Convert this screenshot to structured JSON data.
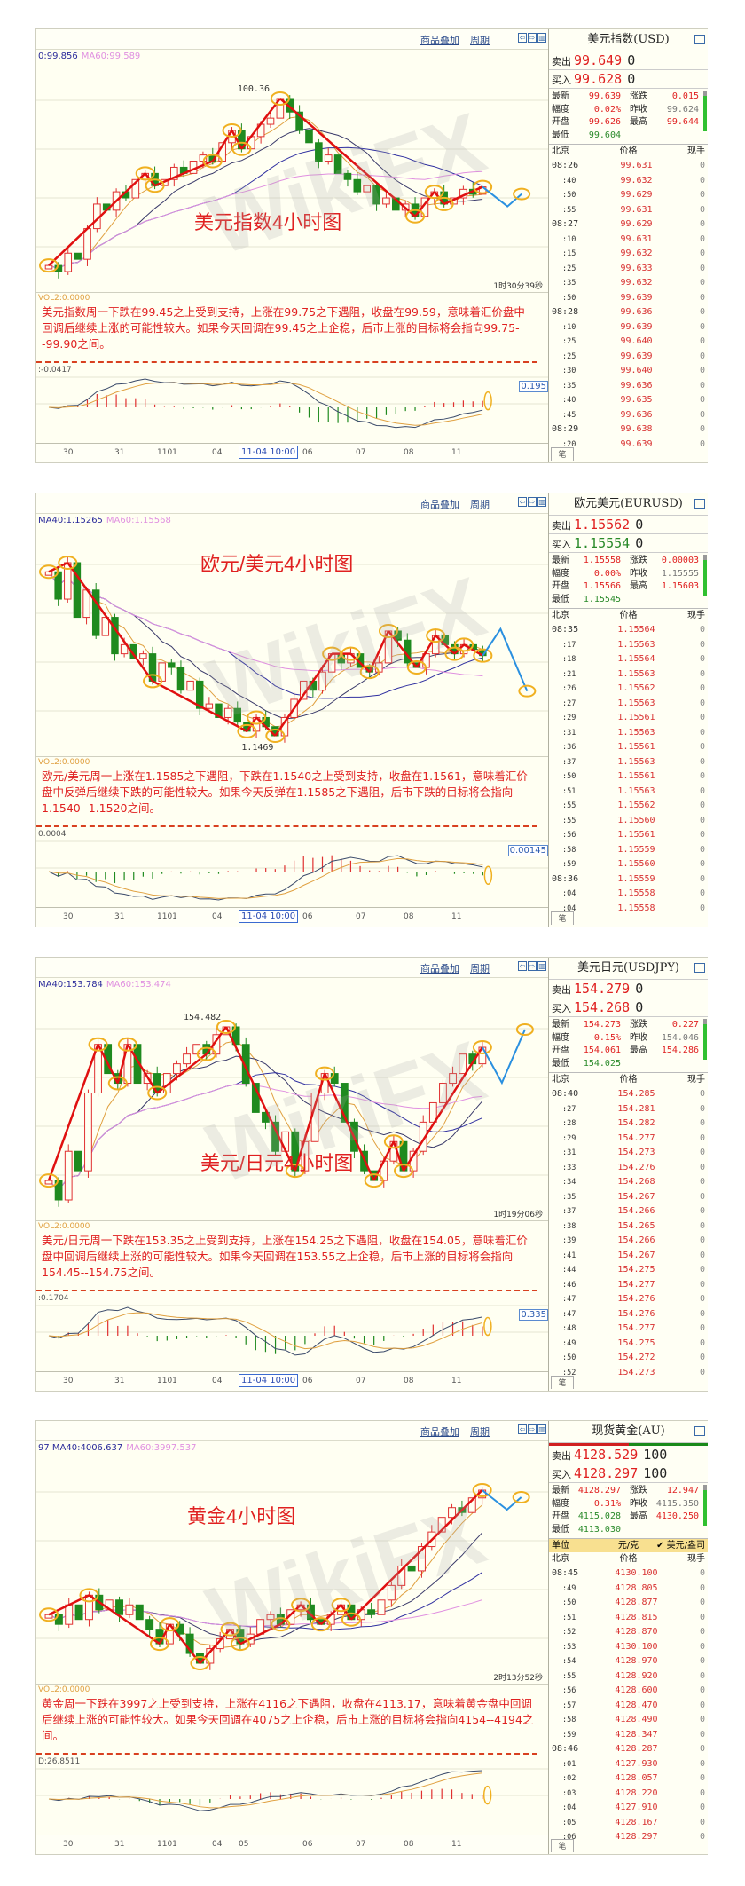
{
  "watermark": "WikiFX",
  "toolbar": {
    "overlay": "商品叠加",
    "period": "周期",
    "icons": [
      "prev-icon",
      "next-icon",
      "layout-icon"
    ]
  },
  "colors": {
    "up": "#e03030",
    "down": "#1f8a1f",
    "ma_fast": "#e0a040",
    "ma_mid": "#3a3a6a",
    "ma_slow": "#3030a0",
    "ma_long": "#e090e0",
    "annotation_ring": "#f0b020",
    "annotation_arrow": "#e01010",
    "forecast_arrow": "#2a90e0"
  },
  "panels": [
    {
      "chart_title": "美元指数4小时图",
      "ma_header": {
        "ma40": "0:99.856",
        "ma60": "MA60:99.589"
      },
      "peak_label": "100.36",
      "timer": "1时30分39秒",
      "vol_label": "VOL2:0.0000",
      "analysis": "美元指数周一下跌在99.45之上受到支持，上涨在99.75之下遇阻，收盘在99.59，意味着汇价盘中回调后继续上涨的可能性较大。如果今天回调在99.45之上企稳，后市上涨的目标将会指向99.75--99.90之间。",
      "macd_label": ":-0.0417",
      "macd_box": "0.195",
      "x_ticks": [
        "30",
        "31",
        "1101",
        "04",
        "11-04 10:00",
        "06",
        "07",
        "08",
        "11"
      ],
      "forecast": "down",
      "closes": [
        99.0,
        98.95,
        99.1,
        99.05,
        99.3,
        99.5,
        99.45,
        99.6,
        99.55,
        99.7,
        99.75,
        99.65,
        99.7,
        99.8,
        99.75,
        99.85,
        99.9,
        99.85,
        100.0,
        100.1,
        99.95,
        100.05,
        100.15,
        100.2,
        100.36,
        100.25,
        100.1,
        100.0,
        99.85,
        99.9,
        99.75,
        99.7,
        99.6,
        99.65,
        99.5,
        99.55,
        99.45,
        99.5,
        99.4,
        99.55,
        99.6,
        99.5,
        99.55,
        99.62,
        99.58,
        99.64
      ],
      "quote": {
        "title": "美元指数(USD)",
        "sell_label": "卖出",
        "sell": "99.649",
        "sell_vol": "0",
        "buy_label": "买入",
        "buy": "99.628",
        "buy_vol": "0",
        "buy_color": "red",
        "stats": [
          [
            "最新",
            "99.639",
            "涨跌",
            "0.015"
          ],
          [
            "幅度",
            "0.02%",
            "昨收",
            "99.624"
          ],
          [
            "开盘",
            "99.626",
            "最高",
            "99.644"
          ],
          [
            "最低",
            "99.604",
            "",
            ""
          ]
        ],
        "columns": [
          "北京",
          "价格",
          "现手"
        ],
        "ticks": [
          [
            "08:26",
            "99.631",
            "0"
          ],
          [
            ":40",
            "99.632",
            "0"
          ],
          [
            ":50",
            "99.629",
            "0"
          ],
          [
            ":55",
            "99.631",
            "0"
          ],
          [
            "08:27",
            "99.629",
            "0"
          ],
          [
            ":10",
            "99.631",
            "0"
          ],
          [
            ":15",
            "99.632",
            "0"
          ],
          [
            ":25",
            "99.633",
            "0"
          ],
          [
            ":35",
            "99.632",
            "0"
          ],
          [
            ":50",
            "99.639",
            "0"
          ],
          [
            "08:28",
            "99.636",
            "0"
          ],
          [
            ":10",
            "99.639",
            "0"
          ],
          [
            ":25",
            "99.640",
            "0"
          ],
          [
            ":25",
            "99.639",
            "0"
          ],
          [
            ":30",
            "99.640",
            "0"
          ],
          [
            ":35",
            "99.636",
            "0"
          ],
          [
            ":40",
            "99.635",
            "0"
          ],
          [
            ":45",
            "99.636",
            "0"
          ],
          [
            "08:29",
            "99.638",
            "0"
          ],
          [
            ":20",
            "99.639",
            "0"
          ]
        ],
        "tab": "笔"
      }
    },
    {
      "chart_title": "欧元/美元4小时图",
      "ma_header": {
        "ma40": "MA40:1.15265",
        "ma60": "MA60:1.15568"
      },
      "low_label": "1.1469",
      "timer": "",
      "vol_label": "VOL2:0.0000",
      "analysis": "欧元/美元周一上涨在1.1585之下遇阻，下跌在1.1540之上受到支持，收盘在1.1561，意味着汇价盘中反弹后继续下跌的可能性较大。如果今天反弹在1.1585之下遇阻，后市下跌的目标将会指向1.1540--1.1520之间。",
      "macd_label": "0.0004",
      "macd_box": "0.00145",
      "x_ticks": [
        "30",
        "31",
        "1101",
        "04",
        "11-04 10:00",
        "06",
        "07",
        "08",
        "11"
      ],
      "forecast": "up-down",
      "closes": [
        1.165,
        1.162,
        1.166,
        1.16,
        1.163,
        1.158,
        1.16,
        1.156,
        1.157,
        1.1555,
        1.156,
        1.153,
        1.155,
        1.1545,
        1.152,
        1.153,
        1.15,
        1.1505,
        1.149,
        1.15,
        1.1485,
        1.1475,
        1.149,
        1.148,
        1.147,
        1.149,
        1.151,
        1.153,
        1.152,
        1.154,
        1.156,
        1.155,
        1.156,
        1.1545,
        1.154,
        1.155,
        1.1585,
        1.1575,
        1.155,
        1.1545,
        1.156,
        1.158,
        1.157,
        1.156,
        1.157,
        1.1565,
        1.1558
      ],
      "quote": {
        "title": "欧元美元(EURUSD)",
        "sell_label": "卖出",
        "sell": "1.15562",
        "sell_vol": "0",
        "buy_label": "买入",
        "buy": "1.15554",
        "buy_vol": "0",
        "buy_color": "green",
        "stats": [
          [
            "最新",
            "1.15558",
            "涨跌",
            "0.00003"
          ],
          [
            "幅度",
            "0.00%",
            "昨收",
            "1.15555"
          ],
          [
            "开盘",
            "1.15566",
            "最高",
            "1.15603"
          ],
          [
            "最低",
            "1.15545",
            "",
            ""
          ]
        ],
        "columns": [
          "北京",
          "价格",
          "现手"
        ],
        "ticks": [
          [
            "08:35",
            "1.15564",
            "0"
          ],
          [
            ":17",
            "1.15563",
            "0"
          ],
          [
            ":18",
            "1.15564",
            "0"
          ],
          [
            ":21",
            "1.15563",
            "0"
          ],
          [
            ":26",
            "1.15562",
            "0"
          ],
          [
            ":27",
            "1.15563",
            "0"
          ],
          [
            ":29",
            "1.15561",
            "0"
          ],
          [
            ":31",
            "1.15563",
            "0"
          ],
          [
            ":36",
            "1.15561",
            "0"
          ],
          [
            ":37",
            "1.15563",
            "0"
          ],
          [
            ":50",
            "1.15561",
            "0"
          ],
          [
            ":51",
            "1.15563",
            "0"
          ],
          [
            ":55",
            "1.15562",
            "0"
          ],
          [
            ":55",
            "1.15560",
            "0"
          ],
          [
            ":56",
            "1.15561",
            "0"
          ],
          [
            ":58",
            "1.15559",
            "0"
          ],
          [
            ":59",
            "1.15560",
            "0"
          ],
          [
            "08:36",
            "1.15559",
            "0"
          ],
          [
            ":04",
            "1.15558",
            "0"
          ],
          [
            ":04",
            "1.15558",
            "0"
          ]
        ],
        "tab": "笔"
      }
    },
    {
      "chart_title": "美元/日元4小时图",
      "ma_header": {
        "ma40": "MA40:153.784",
        "ma60": "MA60:153.474"
      },
      "peak_label": "154.482",
      "timer": "1时19分06秒",
      "vol_label": "VOL2:0.0000",
      "analysis": "美元/日元周一下跌在153.35之上受到支持，上涨在154.25之下遇阻，收盘在154.05，意味着汇价盘中回调后继续上涨的可能性较大。如果今天回调在153.55之上企稳，后市上涨的目标将会指向154.45--154.75之间。",
      "macd_label": ":0.1704",
      "macd_box": "0.335",
      "x_ticks": [
        "30",
        "31",
        "1101",
        "04",
        "11-04 10:00",
        "06",
        "07",
        "08",
        "11"
      ],
      "forecast": "down-up",
      "closes": [
        152.9,
        152.7,
        153.2,
        153.0,
        153.8,
        154.3,
        154.0,
        153.9,
        154.3,
        153.9,
        154.0,
        153.8,
        154.0,
        154.1,
        154.2,
        154.3,
        154.2,
        154.4,
        154.48,
        154.3,
        153.9,
        153.6,
        153.5,
        153.2,
        153.4,
        153.0,
        153.3,
        153.8,
        154.0,
        153.9,
        153.5,
        153.2,
        153.0,
        152.9,
        153.1,
        153.3,
        153.0,
        153.2,
        153.5,
        153.7,
        153.9,
        154.0,
        154.2,
        154.1,
        154.27
      ],
      "quote": {
        "title": "美元日元(USDJPY)",
        "sell_label": "卖出",
        "sell": "154.279",
        "sell_vol": "0",
        "buy_label": "买入",
        "buy": "154.268",
        "buy_vol": "0",
        "buy_color": "red",
        "stats": [
          [
            "最新",
            "154.273",
            "涨跌",
            "0.227"
          ],
          [
            "幅度",
            "0.15%",
            "昨收",
            "154.046"
          ],
          [
            "开盘",
            "154.061",
            "最高",
            "154.286"
          ],
          [
            "最低",
            "154.025",
            "",
            ""
          ]
        ],
        "columns": [
          "北京",
          "价格",
          "现手"
        ],
        "ticks": [
          [
            "08:40",
            "154.285",
            "0"
          ],
          [
            ":27",
            "154.281",
            "0"
          ],
          [
            ":28",
            "154.282",
            "0"
          ],
          [
            ":29",
            "154.277",
            "0"
          ],
          [
            ":31",
            "154.273",
            "0"
          ],
          [
            ":33",
            "154.276",
            "0"
          ],
          [
            ":34",
            "154.268",
            "0"
          ],
          [
            ":35",
            "154.267",
            "0"
          ],
          [
            ":37",
            "154.266",
            "0"
          ],
          [
            ":38",
            "154.265",
            "0"
          ],
          [
            ":39",
            "154.266",
            "0"
          ],
          [
            ":41",
            "154.267",
            "0"
          ],
          [
            ":44",
            "154.275",
            "0"
          ],
          [
            ":46",
            "154.277",
            "0"
          ],
          [
            ":47",
            "154.276",
            "0"
          ],
          [
            ":47",
            "154.276",
            "0"
          ],
          [
            ":48",
            "154.277",
            "0"
          ],
          [
            ":49",
            "154.275",
            "0"
          ],
          [
            ":50",
            "154.272",
            "0"
          ],
          [
            ":52",
            "154.273",
            "0"
          ]
        ],
        "tab": "笔"
      }
    },
    {
      "chart_title": "黄金4小时图",
      "ma_header": {
        "ma40": "97 MA40:4006.637",
        "ma60": "MA60:3997.537"
      },
      "timer": "2时13分52秒",
      "vol_label": "VOL2:0.0000",
      "analysis": "黄金周一下跌在3997之上受到支持，上涨在4116之下遇阻，收盘在4113.17，意味着黄金盘中回调后继续上涨的可能性较大。如果今天回调在4075之上企稳，后市上涨的目标将会指向4154--4194之间。",
      "macd_label": "D:26.8511",
      "macd_box": "",
      "x_ticks": [
        "30",
        "31",
        "1101",
        "04",
        "05",
        "06",
        "07",
        "08",
        "11"
      ],
      "forecast": "down",
      "closes": [
        4000,
        3990,
        4010,
        3995,
        4020,
        4005,
        4015,
        4000,
        4010,
        3995,
        3985,
        3970,
        3990,
        3980,
        3960,
        3950,
        3965,
        3975,
        3985,
        3970,
        3980,
        3995,
        4000,
        3990,
        4005,
        4010,
        3995,
        3990,
        4000,
        4010,
        3995,
        4005,
        4000,
        4015,
        4030,
        4050,
        4045,
        4070,
        4085,
        4100,
        4110,
        4105,
        4120,
        4128
      ],
      "quote": {
        "title": "现货黄金(AU)",
        "sell_label": "卖出",
        "sell": "4128.529",
        "sell_vol": "100",
        "buy_label": "买入",
        "buy": "4128.297",
        "buy_vol": "100",
        "buy_color": "red",
        "stats": [
          [
            "最新",
            "4128.297",
            "涨跌",
            "12.947"
          ],
          [
            "幅度",
            "0.31%",
            "昨收",
            "4115.350"
          ],
          [
            "开盘",
            "4115.028",
            "最高",
            "4130.250"
          ],
          [
            "最低",
            "4113.030",
            "",
            ""
          ]
        ],
        "unit_row": [
          "单位",
          "元/克",
          "✔ 美元/盎司"
        ],
        "columns": [
          "北京",
          "价格",
          "现手"
        ],
        "ticks": [
          [
            "08:45",
            "4130.100",
            "0"
          ],
          [
            ":49",
            "4128.805",
            "0"
          ],
          [
            ":50",
            "4128.877",
            "0"
          ],
          [
            ":51",
            "4128.815",
            "0"
          ],
          [
            ":52",
            "4128.870",
            "0"
          ],
          [
            ":53",
            "4130.100",
            "0"
          ],
          [
            ":54",
            "4128.970",
            "0"
          ],
          [
            ":55",
            "4128.920",
            "0"
          ],
          [
            ":56",
            "4128.600",
            "0"
          ],
          [
            ":57",
            "4128.470",
            "0"
          ],
          [
            ":58",
            "4128.490",
            "0"
          ],
          [
            ":59",
            "4128.347",
            "0"
          ],
          [
            "08:46",
            "4128.287",
            "0"
          ],
          [
            ":01",
            "4127.930",
            "0"
          ],
          [
            ":02",
            "4128.057",
            "0"
          ],
          [
            ":03",
            "4128.220",
            "0"
          ],
          [
            ":04",
            "4127.910",
            "0"
          ],
          [
            ":05",
            "4128.167",
            "0"
          ],
          [
            ":06",
            "4128.297",
            "0"
          ]
        ],
        "tab": "笔"
      }
    }
  ]
}
